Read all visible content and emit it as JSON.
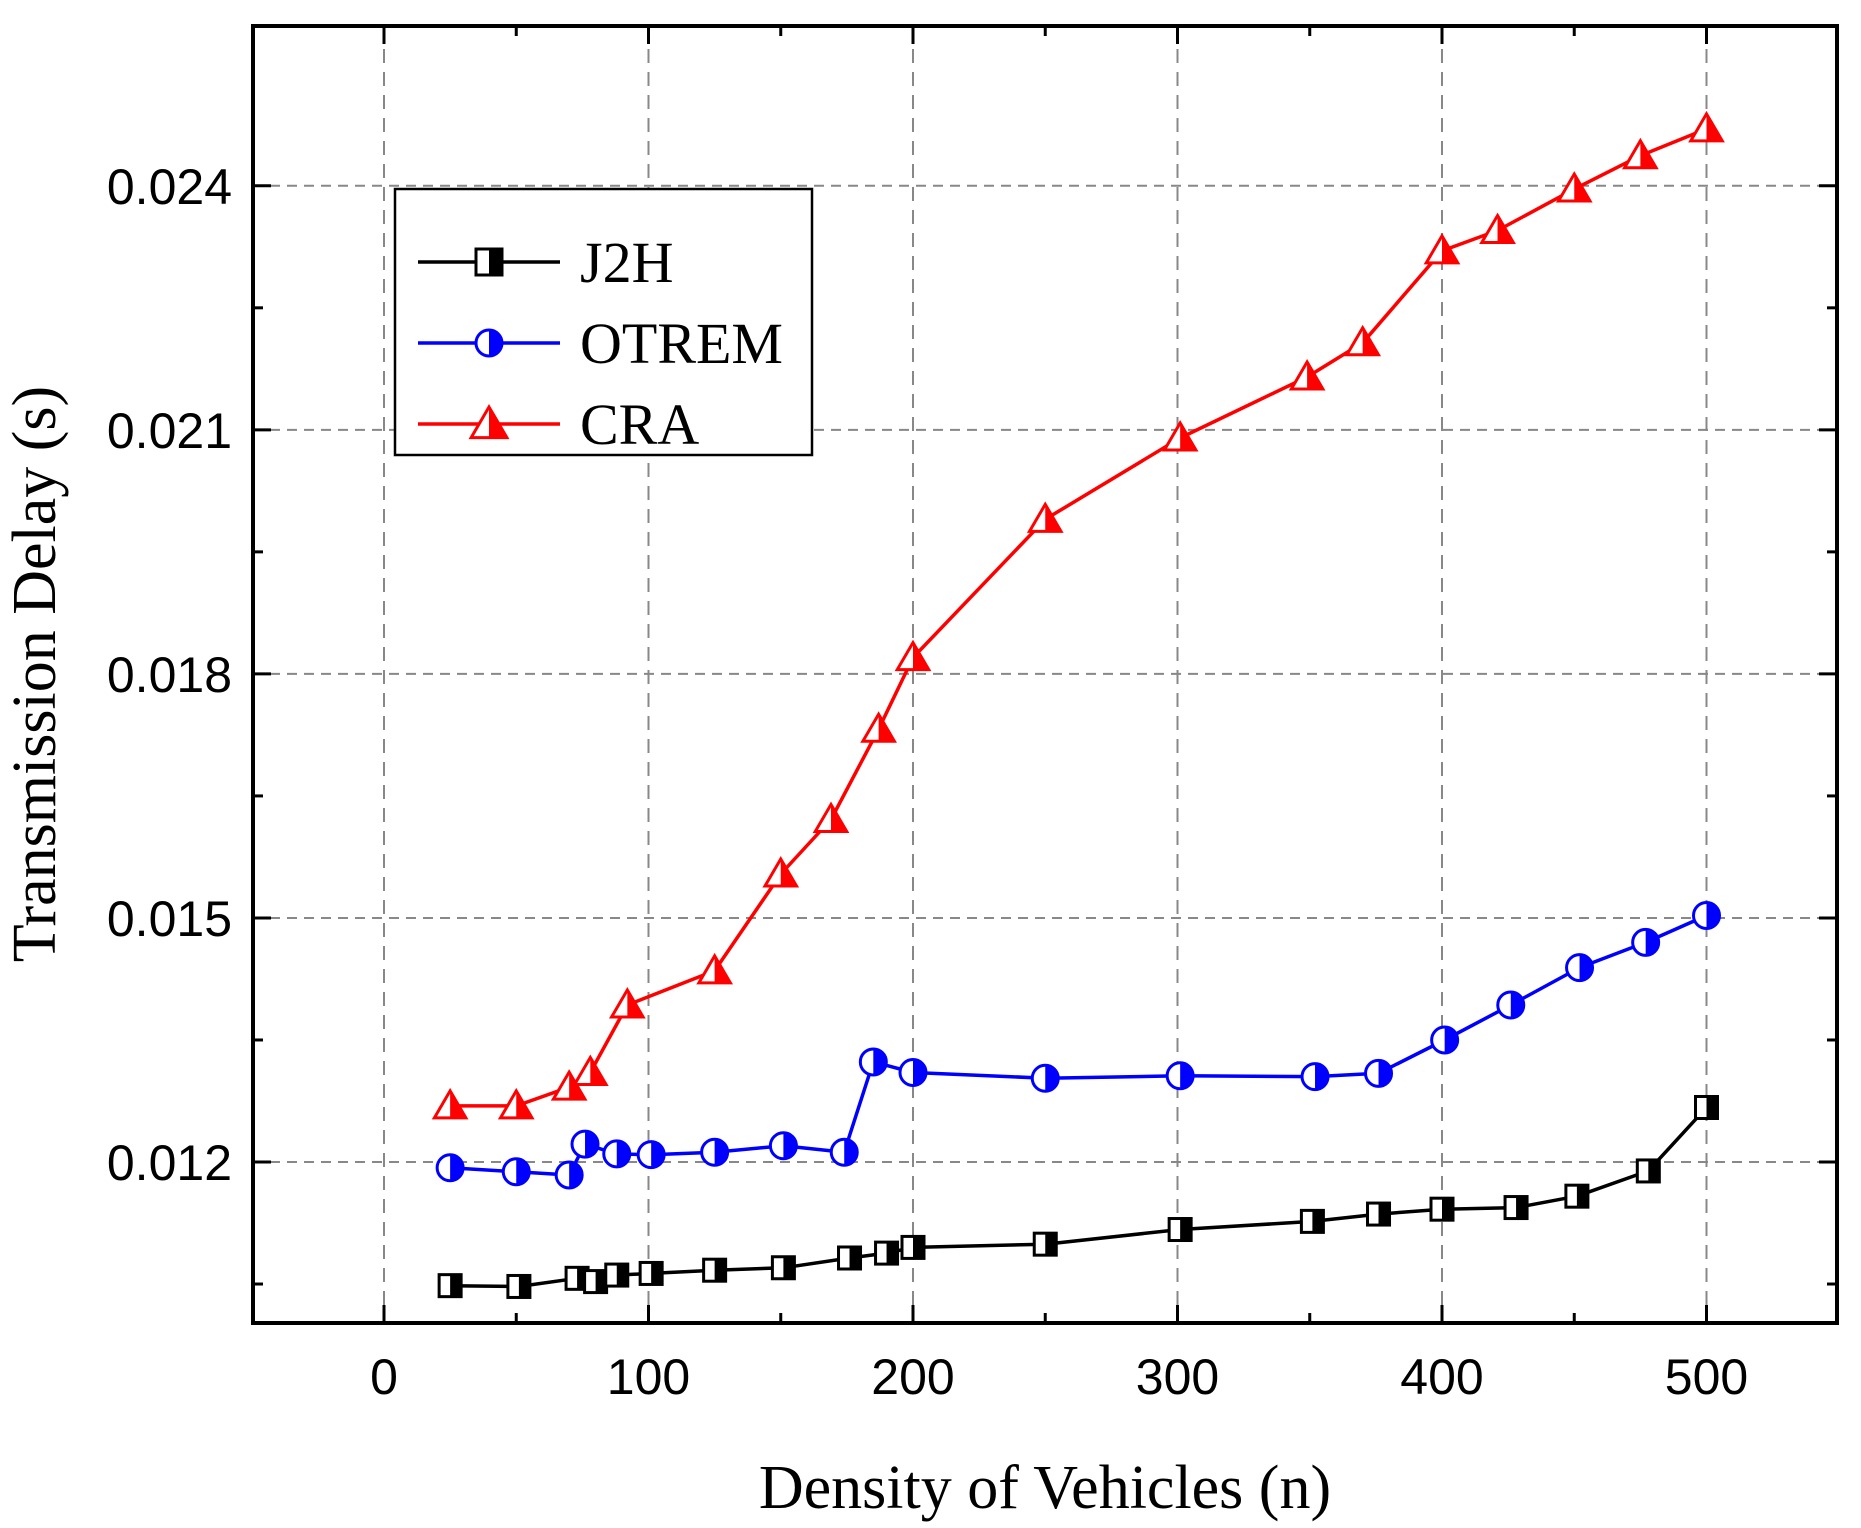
{
  "chart_data": {
    "type": "line",
    "title": "",
    "xlabel": "Density of Vehicles (n)",
    "ylabel": "Transmission Delay (s)",
    "xlim": [
      -50,
      550
    ],
    "ylim": [
      0.0102,
      0.0254
    ],
    "xticks": [
      0,
      100,
      200,
      300,
      400,
      500
    ],
    "xtick_labels": [
      "0",
      "100",
      "200",
      "300",
      "400",
      "500"
    ],
    "yticks": [
      0.012,
      0.015,
      0.018,
      0.021,
      0.024
    ],
    "ytick_labels": [
      "0.012",
      "0.015",
      "0.018",
      "0.021",
      "0.024"
    ],
    "grid": true,
    "legend_position": "top-left",
    "series": [
      {
        "name": "J2H",
        "color": "#000000",
        "marker": "half-filled-square",
        "x": [
          25,
          51,
          73,
          80,
          88,
          101,
          125,
          151,
          176,
          190,
          200,
          250,
          301,
          351,
          376,
          400,
          428,
          451,
          478,
          500
        ],
        "y": [
          0.01048,
          0.01047,
          0.01057,
          0.01053,
          0.01061,
          0.01063,
          0.01067,
          0.0107,
          0.01082,
          0.01088,
          0.01095,
          0.01099,
          0.01117,
          0.01127,
          0.01136,
          0.01142,
          0.01144,
          0.01158,
          0.01189,
          0.01267
        ]
      },
      {
        "name": "OTREM",
        "color": "#0000FF",
        "marker": "half-filled-circle",
        "x": [
          25,
          50,
          70,
          76,
          88,
          101,
          125,
          151,
          174,
          185,
          200,
          250,
          301,
          352,
          376,
          401,
          426,
          452,
          477,
          500
        ],
        "y": [
          0.01193,
          0.01188,
          0.01184,
          0.01222,
          0.0121,
          0.01209,
          0.01212,
          0.0122,
          0.01212,
          0.01323,
          0.0131,
          0.01303,
          0.01306,
          0.01305,
          0.01309,
          0.0135,
          0.01393,
          0.01439,
          0.0147,
          0.01503
        ]
      },
      {
        "name": "CRA",
        "color": "#FF0000",
        "marker": "half-filled-triangle",
        "x": [
          25,
          50,
          70,
          78,
          92,
          125,
          150,
          169,
          187,
          200,
          250,
          301,
          349,
          370,
          400,
          421,
          450,
          475,
          500
        ],
        "y": [
          0.01269,
          0.01269,
          0.01292,
          0.0131,
          0.01393,
          0.01435,
          0.01554,
          0.01621,
          0.01732,
          0.0182,
          0.0199,
          0.0209,
          0.02165,
          0.02207,
          0.0232,
          0.02345,
          0.02396,
          0.02437,
          0.0247
        ]
      }
    ]
  }
}
